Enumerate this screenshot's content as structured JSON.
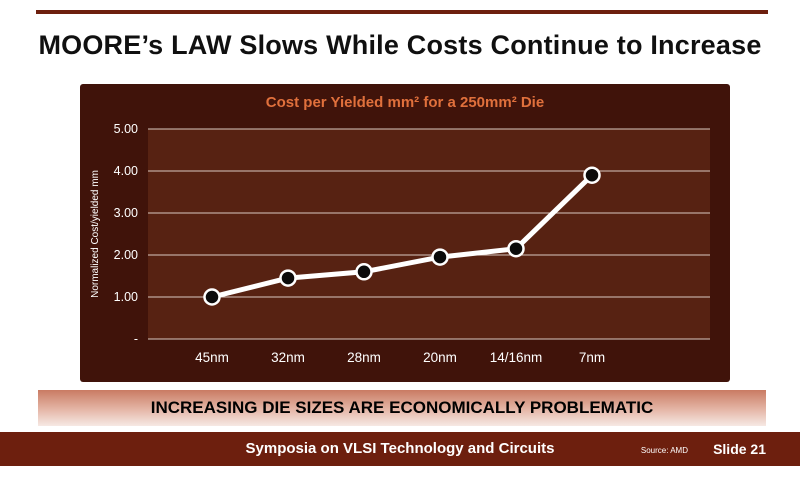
{
  "slide": {
    "title": "MOORE’s LAW Slows While Costs Continue to Increase",
    "banner": "INCREASING DIE SIZES ARE ECONOMICALLY PROBLEMATIC",
    "footer": {
      "center": "Symposia on VLSI Technology and Circuits",
      "source": "Source: AMD",
      "slide_number": "Slide 21"
    }
  },
  "colors": {
    "maroon_bar": "#6D1F0E",
    "chart_outer_bg": "#40130A",
    "plot_bg": "#572212",
    "accent_orange": "#E0703C",
    "gridline": "#D9C8C0",
    "line": "#FFFFFF",
    "marker_fill": "#0B0B0B",
    "marker_stroke": "#FFFFFF",
    "axis_text": "#FFFFFF"
  },
  "chart_data": {
    "type": "line",
    "title": "Cost per Yielded mm² for a 250mm² Die",
    "categories": [
      "45nm",
      "32nm",
      "28nm",
      "20nm",
      "14/16nm",
      "7nm"
    ],
    "values": [
      1.0,
      1.45,
      1.6,
      1.95,
      2.15,
      3.9
    ],
    "xlabel": "",
    "ylabel": "Normalized Cost/yielded mm",
    "ylim": [
      0,
      5
    ],
    "ytick_labels": [
      "-",
      "1.00",
      "2.00",
      "3.00",
      "4.00",
      "5.00"
    ],
    "grid": true,
    "legend": false
  }
}
